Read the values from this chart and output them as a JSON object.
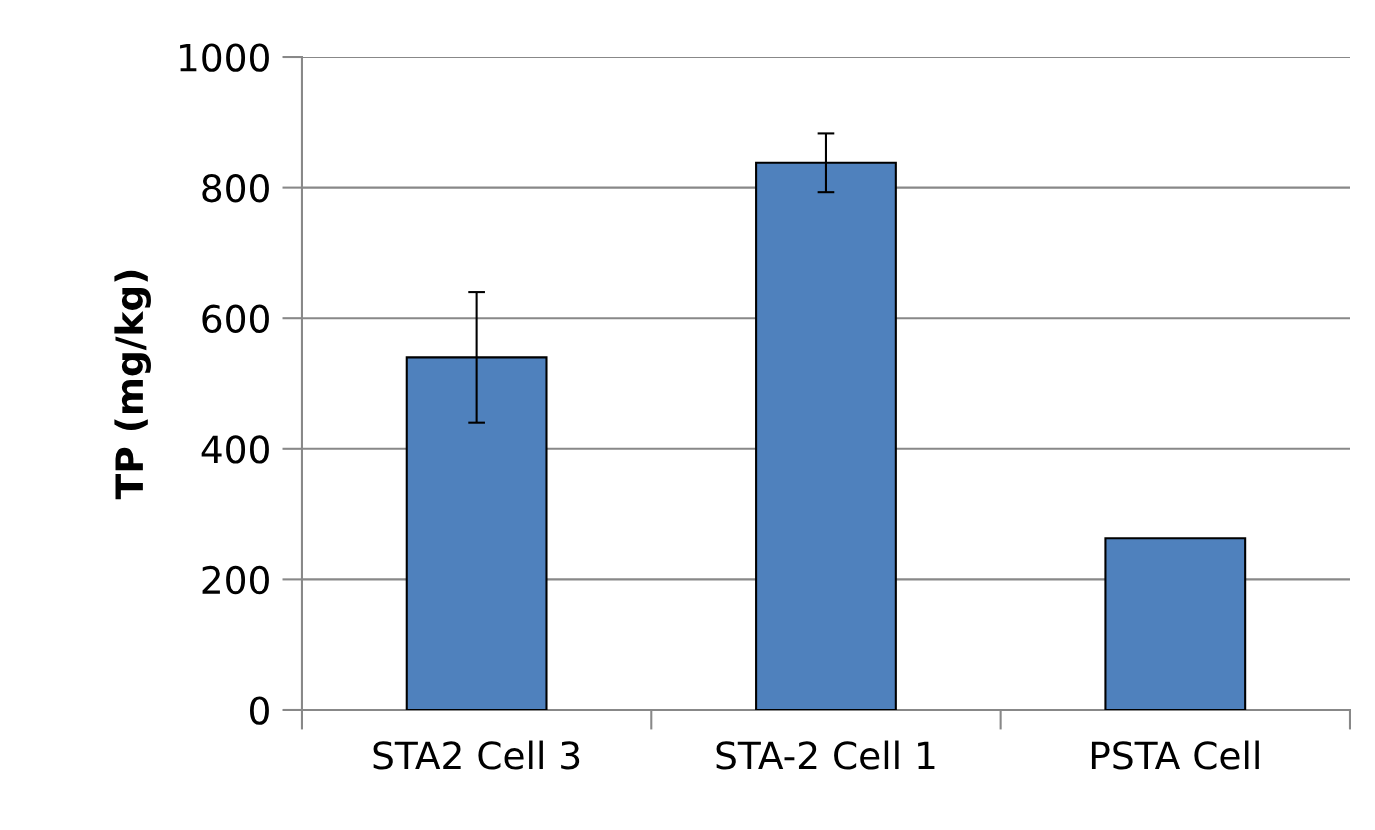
{
  "chart_data": {
    "type": "bar",
    "ylabel": "TP (mg/kg)",
    "categories": [
      "STA2 Cell 3",
      "STA-2 Cell 1",
      "PSTA Cell"
    ],
    "values": [
      540,
      838,
      263
    ],
    "errors": [
      100,
      45,
      null
    ],
    "color": "#4f81bd",
    "ylim": [
      0,
      1000
    ],
    "yticks": [
      0,
      200,
      400,
      600,
      800,
      1000
    ],
    "grid": "y",
    "legend": false
  }
}
